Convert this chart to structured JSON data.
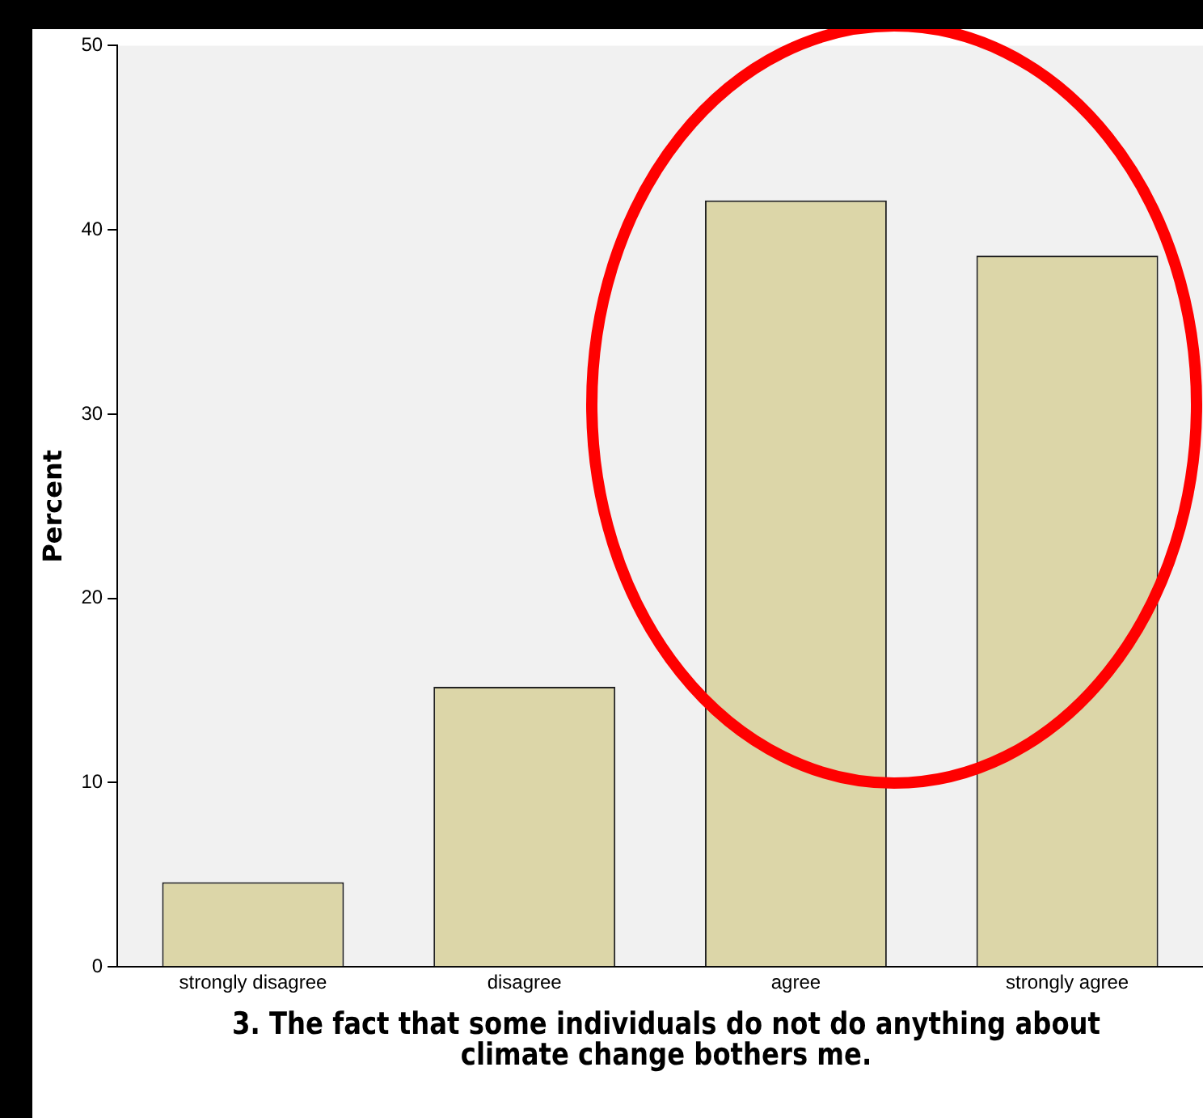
{
  "chart_data": {
    "type": "bar",
    "xlabel": "3. The fact that some individuals do not do anything about climate change bothers me.",
    "ylabel": "Percent",
    "categories": [
      "strongly disagree",
      "disagree",
      "agree",
      "strongly agree"
    ],
    "values": [
      4.6,
      15.2,
      41.6,
      38.6
    ],
    "color": "#dcd6a8",
    "ylim": [
      0,
      50
    ],
    "yticks": [
      0,
      10,
      20,
      30,
      40,
      50
    ],
    "grid": false,
    "legend": false
  }
}
